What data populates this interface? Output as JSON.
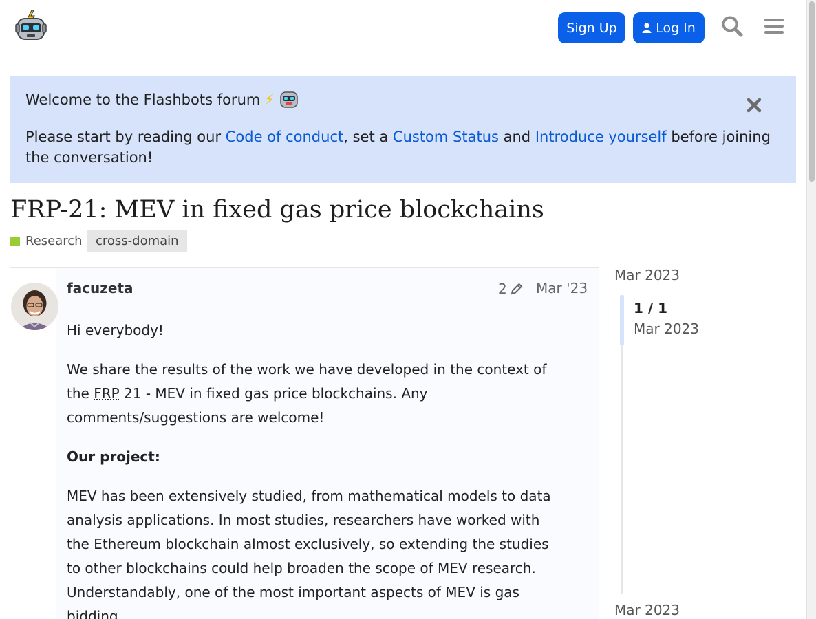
{
  "header": {
    "logo_icon": "flashbots-robot-logo",
    "signup_label": "Sign Up",
    "login_label": "Log In",
    "search_icon": "search-icon",
    "menu_icon": "hamburger-menu-icon",
    "accent_color": "#0a60e8"
  },
  "banner": {
    "title": "Welcome to the Flashbots forum",
    "title_emoji": "⚡",
    "body_prefix": "Please start by reading our ",
    "link_code_of_conduct": "Code of conduct",
    "sep1": ", set a ",
    "link_custom_status": "Custom Status",
    "sep2": " and ",
    "link_introduce": "Introduce yourself",
    "body_suffix": " before joining the conversation!",
    "background_color": "#d6e3fb"
  },
  "topic": {
    "title": "FRP-21: MEV in fixed gas price blockchains",
    "category": "Research",
    "category_color": "#9acd32",
    "tag": "cross-domain"
  },
  "post": {
    "username": "facuzeta",
    "edit_count": "2",
    "date": "Mar '23",
    "greeting": "Hi everybody!",
    "p1_prefix": "We share the results of the work we have developed in the context of the ",
    "p1_abbr": "FRP",
    "p1_suffix": " 21 - MEV in fixed gas price blockchains. Any comments/suggestions are welcome!",
    "heading": "Our project:",
    "p2": "MEV has been extensively studied, from mathematical models to data analysis applications. In most studies, researchers have worked with the Ethereum blockchain almost exclusively, so extending the studies to other blockchains could help broaden the scope of MEV research. Understandably, one of the most important aspects of MEV is gas bidding."
  },
  "timeline": {
    "top_date": "Mar 2023",
    "count": "1 / 1",
    "current_date": "Mar 2023",
    "bottom_date": "Mar 2023"
  }
}
